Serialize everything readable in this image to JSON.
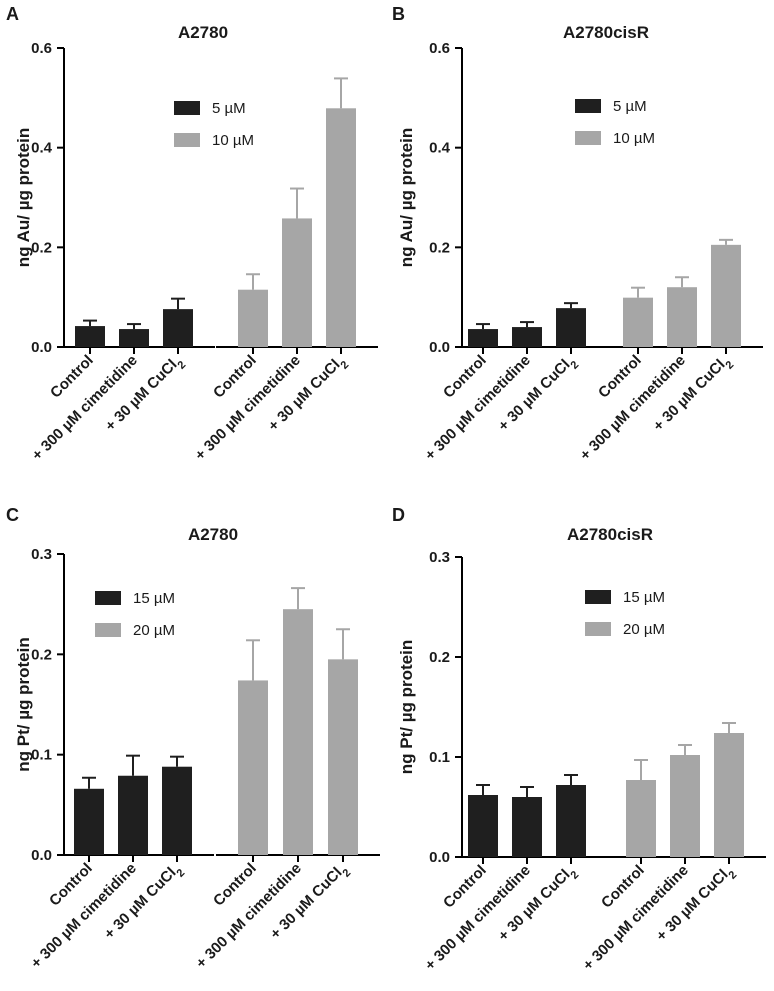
{
  "figure": {
    "panels": [
      "A",
      "B",
      "C",
      "D"
    ]
  },
  "colors": {
    "dark": "#1f1f1f",
    "light": "#a6a6a6",
    "axis": "#000000"
  },
  "chart_data": [
    {
      "panel": "A",
      "type": "bar",
      "title": "A2780",
      "ylabel": "ng Au/ µg protein",
      "ylim": [
        0,
        0.6
      ],
      "yticks": [
        "0.0",
        "0.2",
        "0.4",
        "0.6"
      ],
      "groups": [
        {
          "series": "5 µM",
          "categories": [
            "Control",
            "+ 300 µM cimetidine",
            "+ 30 µM CuCl2"
          ],
          "values": [
            0.042,
            0.036,
            0.076
          ],
          "errors": [
            0.011,
            0.01,
            0.021
          ]
        },
        {
          "series": "10 µM",
          "categories": [
            "Control",
            "+ 300 µM cimetidine",
            "+ 30 µM CuCl2"
          ],
          "values": [
            0.115,
            0.258,
            0.479
          ],
          "errors": [
            0.031,
            0.06,
            0.06
          ]
        }
      ],
      "legend": [
        "5 µM",
        "10 µM"
      ]
    },
    {
      "panel": "B",
      "type": "bar",
      "title": "A2780cisR",
      "ylabel": "ng Au/ µg protein",
      "ylim": [
        0,
        0.6
      ],
      "yticks": [
        "0.0",
        "0.2",
        "0.4",
        "0.6"
      ],
      "groups": [
        {
          "series": "5 µM",
          "categories": [
            "Control",
            "+ 300 µM cimetidine",
            "+ 30 µM CuCl2"
          ],
          "values": [
            0.036,
            0.04,
            0.078
          ],
          "errors": [
            0.01,
            0.01,
            0.01
          ]
        },
        {
          "series": "10 µM",
          "categories": [
            "Control",
            "+ 300 µM cimetidine",
            "+ 30 µM CuCl2"
          ],
          "values": [
            0.099,
            0.12,
            0.205
          ],
          "errors": [
            0.02,
            0.02,
            0.01
          ]
        }
      ],
      "legend": [
        "5 µM",
        "10 µM"
      ]
    },
    {
      "panel": "C",
      "type": "bar",
      "title": "A2780",
      "ylabel": "ng Pt/ µg protein",
      "ylim": [
        0,
        0.3
      ],
      "yticks": [
        "0.0",
        "0.1",
        "0.2",
        "0.3"
      ],
      "groups": [
        {
          "series": "15 µM",
          "categories": [
            "Control",
            "+ 300 µM cimetidine",
            "+ 30 µM CuCl2"
          ],
          "values": [
            0.066,
            0.079,
            0.088
          ],
          "errors": [
            0.011,
            0.02,
            0.01
          ]
        },
        {
          "series": "20 µM",
          "categories": [
            "Control",
            "+ 300 µM cimetidine",
            "+ 30 µM CuCl2"
          ],
          "values": [
            0.174,
            0.245,
            0.195
          ],
          "errors": [
            0.04,
            0.021,
            0.03
          ]
        }
      ],
      "legend": [
        "15 µM",
        "20 µM"
      ]
    },
    {
      "panel": "D",
      "type": "bar",
      "title": "A2780cisR",
      "ylabel": "ng Pt/ µg protein",
      "ylim": [
        0,
        0.3
      ],
      "yticks": [
        "0.0",
        "0.1",
        "0.2",
        "0.3"
      ],
      "groups": [
        {
          "series": "15 µM",
          "categories": [
            "Control",
            "+ 300 µM cimetidine",
            "+ 30 µM CuCl2"
          ],
          "values": [
            0.062,
            0.06,
            0.072
          ],
          "errors": [
            0.01,
            0.01,
            0.01
          ]
        },
        {
          "series": "20 µM",
          "categories": [
            "Control",
            "+ 300 µM cimetidine",
            "+ 30 µM CuCl2"
          ],
          "values": [
            0.077,
            0.102,
            0.124
          ],
          "errors": [
            0.02,
            0.01,
            0.01
          ]
        }
      ],
      "legend": [
        "15 µM",
        "20 µM"
      ]
    }
  ]
}
